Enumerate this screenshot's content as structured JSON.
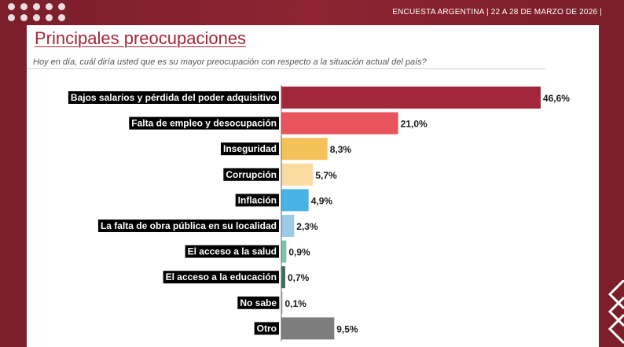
{
  "header": {
    "text": "ENCUESTA ARGENTINA | 22 A 28 DE MARZO DE 2026 |"
  },
  "title": "Principales preocupaciones",
  "subtitle": "Hoy en día, cuál diría usted que es su mayor preocupación con respecto a la situación actual del país?",
  "chart_data": {
    "type": "bar",
    "orientation": "horizontal",
    "title": "Principales preocupaciones",
    "xlabel": "",
    "ylabel": "",
    "xlim": [
      0,
      50
    ],
    "grid": false,
    "categories": [
      "Bajos salarios y pérdida del poder adquisitivo",
      "Falta de empleo y desocupación",
      "Inseguridad",
      "Corrupción",
      "Inflación",
      "La falta de obra pública en su localidad",
      "El acceso a la salud",
      "El acceso a la educación",
      "No sabe",
      "Otro"
    ],
    "values": [
      46.6,
      21.0,
      8.3,
      5.7,
      4.9,
      2.3,
      0.9,
      0.7,
      0.1,
      9.5
    ],
    "value_labels": [
      "46,6%",
      "21,0%",
      "8,3%",
      "5,7%",
      "4,9%",
      "2,3%",
      "0,9%",
      "0,7%",
      "0,1%",
      "9,5%"
    ],
    "colors": [
      "#a3273a",
      "#e8545c",
      "#f5c25a",
      "#f8dca0",
      "#4ab3e6",
      "#9ccbe6",
      "#7cc4a8",
      "#3f6e58",
      "#bbbbbb",
      "#7d7d7d"
    ]
  }
}
